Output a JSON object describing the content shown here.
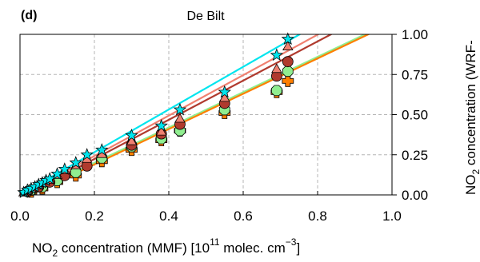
{
  "chart_data": {
    "type": "scatter",
    "panel_label": "(d)",
    "title": "De Bilt",
    "xlabel": {
      "p1": "NO",
      "sub": "2",
      "p2": " concentration (MMF) [10",
      "sup1": "11",
      "p3": " molec. cm",
      "sup2": "−3",
      "p4": "]"
    },
    "ylabel": {
      "p1": "NO",
      "sub": "2",
      "p2": " concentration (WRF-"
    },
    "xlim": [
      0,
      1.0
    ],
    "ylim": [
      0,
      1.0
    ],
    "x_ticks": [
      "0.0",
      "0.2",
      "0.4",
      "0.6",
      "0.8",
      "1.0"
    ],
    "y_ticks": [
      "0.00",
      "0.25",
      "0.50",
      "0.75",
      "1.00"
    ],
    "y_axis_side": "right",
    "grid": true,
    "series": [
      {
        "color": "#00e5ee",
        "marker": "star",
        "fit": {
          "slope": 1.33,
          "intercept": 0.0
        },
        "points": [
          [
            0.01,
            0.015
          ],
          [
            0.02,
            0.03
          ],
          [
            0.03,
            0.04
          ],
          [
            0.04,
            0.05
          ],
          [
            0.05,
            0.065
          ],
          [
            0.06,
            0.075
          ],
          [
            0.07,
            0.09
          ],
          [
            0.08,
            0.1
          ],
          [
            0.1,
            0.13
          ],
          [
            0.12,
            0.16
          ],
          [
            0.15,
            0.2
          ],
          [
            0.18,
            0.25
          ],
          [
            0.22,
            0.28
          ],
          [
            0.3,
            0.37
          ],
          [
            0.38,
            0.43
          ],
          [
            0.43,
            0.53
          ],
          [
            0.55,
            0.64
          ],
          [
            0.69,
            0.87
          ],
          [
            0.72,
            0.97
          ]
        ]
      },
      {
        "color": "#f08070",
        "marker": "triangle",
        "fit": {
          "slope": 1.26,
          "intercept": -0.01
        },
        "points": [
          [
            0.01,
            0.01
          ],
          [
            0.02,
            0.025
          ],
          [
            0.03,
            0.035
          ],
          [
            0.05,
            0.055
          ],
          [
            0.06,
            0.07
          ],
          [
            0.08,
            0.09
          ],
          [
            0.1,
            0.12
          ],
          [
            0.12,
            0.15
          ],
          [
            0.15,
            0.18
          ],
          [
            0.18,
            0.22
          ],
          [
            0.22,
            0.25
          ],
          [
            0.3,
            0.33
          ],
          [
            0.38,
            0.39
          ],
          [
            0.43,
            0.47
          ],
          [
            0.55,
            0.6
          ],
          [
            0.69,
            0.78
          ],
          [
            0.72,
            0.92
          ]
        ]
      },
      {
        "color": "#b03a2e",
        "marker": "circle",
        "fit": {
          "slope": 1.22,
          "intercept": -0.02
        },
        "points": [
          [
            0.02,
            0.02
          ],
          [
            0.05,
            0.05
          ],
          [
            0.08,
            0.08
          ],
          [
            0.12,
            0.12
          ],
          [
            0.18,
            0.18
          ],
          [
            0.3,
            0.31
          ],
          [
            0.38,
            0.38
          ],
          [
            0.43,
            0.44
          ],
          [
            0.55,
            0.57
          ],
          [
            0.69,
            0.74
          ],
          [
            0.72,
            0.83
          ]
        ]
      },
      {
        "color": "#90ee90",
        "marker": "octagon",
        "fit": {
          "slope": 1.1,
          "intercept": -0.02
        },
        "points": [
          [
            0.03,
            0.03
          ],
          [
            0.06,
            0.05
          ],
          [
            0.1,
            0.09
          ],
          [
            0.15,
            0.14
          ],
          [
            0.22,
            0.23
          ],
          [
            0.3,
            0.3
          ],
          [
            0.38,
            0.35
          ],
          [
            0.43,
            0.4
          ],
          [
            0.55,
            0.53
          ],
          [
            0.69,
            0.65
          ],
          [
            0.72,
            0.77
          ]
        ]
      },
      {
        "color": "#ff7f00",
        "marker": "plus",
        "fit": {
          "slope": 1.1,
          "intercept": -0.03
        },
        "points": [
          [
            0.03,
            0.02
          ],
          [
            0.06,
            0.04
          ],
          [
            0.1,
            0.08
          ],
          [
            0.15,
            0.12
          ],
          [
            0.22,
            0.21
          ],
          [
            0.3,
            0.28
          ],
          [
            0.38,
            0.34
          ],
          [
            0.43,
            0.4
          ],
          [
            0.55,
            0.51
          ],
          [
            0.69,
            0.64
          ],
          [
            0.72,
            0.71
          ]
        ]
      }
    ]
  }
}
